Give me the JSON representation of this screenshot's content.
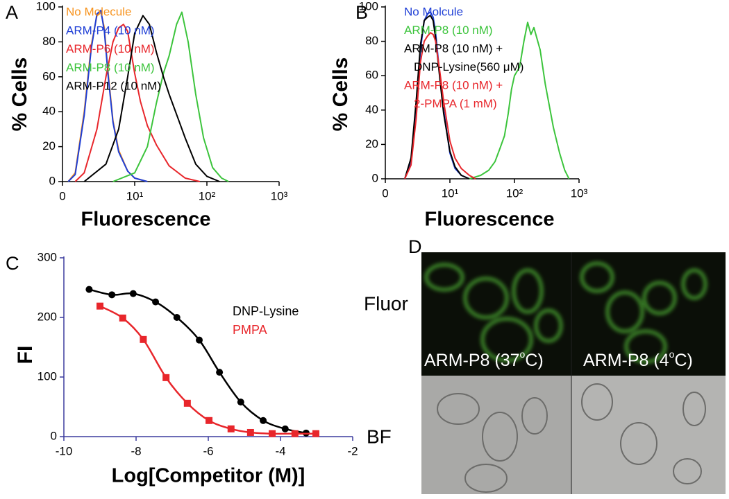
{
  "chart_data": [
    {
      "type": "line",
      "panel_label": "A",
      "x_label": "Fluorescence",
      "y_label": "% Cells",
      "log_x": true,
      "xlim": [
        1,
        1000
      ],
      "xticks": [
        {
          "value": 1,
          "label": "0"
        },
        {
          "value": 10,
          "label": "10¹"
        },
        {
          "value": 100,
          "label": "10²"
        },
        {
          "value": 1000,
          "label": "10³"
        }
      ],
      "ylim": [
        0,
        100
      ],
      "yticks": [
        0,
        20,
        40,
        60,
        80,
        100
      ],
      "axis_color": "#000000",
      "series": [
        {
          "name": "No Molecule",
          "color": "#f7931e",
          "x": [
            1.2,
            1.5,
            2,
            2.5,
            3,
            3.4,
            3.8,
            4.3,
            5,
            6,
            8,
            10,
            15
          ],
          "values": [
            0,
            5,
            40,
            78,
            95,
            97,
            88,
            62,
            35,
            18,
            6,
            2,
            0
          ]
        },
        {
          "name": "ARM-P4 (10 nM)",
          "color": "#1f3fd6",
          "x": [
            1.2,
            1.5,
            2,
            2.5,
            3,
            3.4,
            3.8,
            4.3,
            5,
            6,
            8,
            10,
            15
          ],
          "values": [
            0,
            4,
            38,
            76,
            96,
            98,
            86,
            60,
            34,
            17,
            6,
            2,
            0
          ]
        },
        {
          "name": "ARM-P6 (10 nM)",
          "color": "#e8262b",
          "x": [
            1.5,
            2,
            3,
            4,
            5,
            6,
            7,
            8,
            10,
            12,
            15,
            20,
            30,
            50,
            80
          ],
          "values": [
            0,
            5,
            30,
            60,
            80,
            88,
            90,
            86,
            62,
            46,
            32,
            21,
            9,
            2,
            0
          ]
        },
        {
          "name": "ARM-P8 (10 nM)",
          "color": "#3cc43c",
          "x": [
            5,
            10,
            15,
            20,
            25,
            30,
            38,
            45,
            55,
            70,
            90,
            120,
            160,
            200
          ],
          "values": [
            0,
            5,
            20,
            45,
            62,
            72,
            90,
            97,
            80,
            50,
            25,
            8,
            2,
            0
          ]
        },
        {
          "name": "ARM-P12 (10 nM)",
          "color": "#000000",
          "x": [
            2,
            4,
            6,
            8,
            10,
            13,
            16,
            20,
            25,
            30,
            40,
            50,
            70,
            100,
            150
          ],
          "values": [
            0,
            10,
            30,
            60,
            85,
            95,
            90,
            74,
            60,
            50,
            36,
            25,
            10,
            3,
            0
          ]
        }
      ]
    },
    {
      "type": "line",
      "panel_label": "B",
      "x_label": "Fluorescence",
      "y_label": "% Cells",
      "log_x": true,
      "xlim": [
        1,
        1000
      ],
      "xticks": [
        {
          "value": 1,
          "label": "0"
        },
        {
          "value": 10,
          "label": "10¹"
        },
        {
          "value": 100,
          "label": "10²"
        },
        {
          "value": 1000,
          "label": "10³"
        }
      ],
      "ylim": [
        0,
        100
      ],
      "yticks": [
        0,
        20,
        40,
        60,
        80,
        100
      ],
      "axis_color": "#000000",
      "series": [
        {
          "name": "No Molcule",
          "color": "#1f3fd6",
          "x": [
            2,
            2.5,
            3,
            3.5,
            4,
            4.5,
            5,
            5.5,
            6,
            7,
            8,
            10,
            12,
            15,
            20
          ],
          "values": [
            0,
            10,
            40,
            75,
            92,
            96,
            97,
            94,
            85,
            60,
            40,
            15,
            6,
            2,
            0
          ]
        },
        {
          "name": "ARM-P8 (10 nM)",
          "color": "#3cc43c",
          "x": [
            20,
            30,
            40,
            50,
            60,
            70,
            80,
            90,
            100,
            120,
            140,
            160,
            180,
            200,
            250,
            300,
            400,
            500,
            600,
            700
          ],
          "values": [
            0,
            2,
            5,
            10,
            18,
            25,
            38,
            52,
            60,
            65,
            80,
            91,
            84,
            88,
            75,
            55,
            30,
            15,
            5,
            0
          ]
        },
        {
          "name": [
            "ARM-P8 (10 nM) +",
            "DNP-Lysine(560 μM)"
          ],
          "color": "#000000",
          "x": [
            2,
            2.5,
            3,
            3.5,
            4,
            4.5,
            5,
            5.5,
            6,
            7,
            8,
            10,
            12,
            15,
            20
          ],
          "values": [
            0,
            12,
            45,
            78,
            92,
            94,
            95,
            92,
            82,
            58,
            38,
            16,
            7,
            2,
            0
          ]
        },
        {
          "name": [
            "ARM-P8 (10 nM) +",
            "2-PMPA (1 mM)"
          ],
          "color": "#e8262b",
          "x": [
            2,
            2.5,
            3,
            3.5,
            4,
            4.5,
            5,
            5.5,
            6,
            7,
            8,
            10,
            12,
            15,
            20,
            25
          ],
          "values": [
            0,
            8,
            35,
            68,
            80,
            83,
            85,
            84,
            80,
            62,
            45,
            22,
            12,
            6,
            2,
            0
          ]
        }
      ]
    },
    {
      "type": "scatter",
      "panel_label": "C",
      "x_label": "Log[Competitor (M)]",
      "y_label": "FI",
      "fit_curve": true,
      "xlim": [
        -10,
        -2
      ],
      "xticks": [
        -10,
        -8,
        -6,
        -4,
        -2
      ],
      "ylim": [
        0,
        300
      ],
      "yticks": [
        0,
        100,
        200,
        300
      ],
      "axis_color": "#3b3b9e",
      "series": [
        {
          "name": "DNP-Lysine",
          "color": "#000000",
          "marker": "circle",
          "x": [
            -9.3,
            -8.67,
            -8.08,
            -7.46,
            -6.87,
            -6.25,
            -5.69,
            -5.1,
            -4.48,
            -3.87,
            -3.29
          ],
          "values": [
            247,
            238,
            240,
            226,
            200,
            162,
            108,
            58,
            27,
            13,
            6
          ]
        },
        {
          "name": "PMPA",
          "color": "#e8262b",
          "marker": "square",
          "x": [
            -9.0,
            -8.37,
            -7.8,
            -7.17,
            -6.58,
            -5.98,
            -5.37,
            -4.83,
            -4.23,
            -3.6,
            -3.02
          ],
          "values": [
            219,
            199,
            163,
            99,
            56,
            27,
            13,
            7,
            5,
            5,
            5
          ]
        }
      ]
    }
  ],
  "images": {
    "panel_label": "D",
    "row_labels": [
      "Fluor",
      "BF"
    ],
    "captions": [
      [
        "ARM-P8 (37",
        "o",
        "C)"
      ],
      [
        "ARM-P8 (4",
        "o",
        "C)"
      ]
    ]
  }
}
